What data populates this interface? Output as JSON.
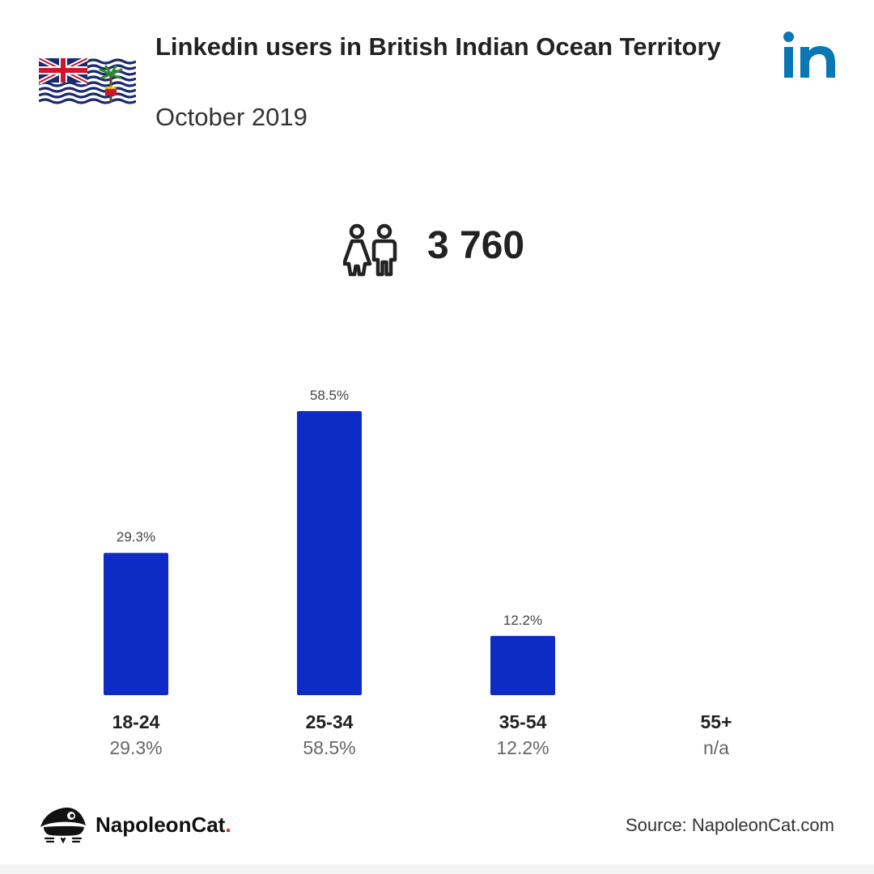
{
  "header": {
    "title": "Linkedin users in British Indian Ocean Territory",
    "subtitle": "October 2019"
  },
  "summary": {
    "total_users": "3 760",
    "icon": "users-icon"
  },
  "icons": {
    "flag": "british-indian-ocean-territory-flag-icon",
    "platform": "linkedin-icon",
    "brand": "napoleoncat-logo-icon"
  },
  "colors": {
    "bar": "#0f2bc6",
    "linkedin": "#0a77b5",
    "brand_dot": "#e0242d"
  },
  "chart_data": {
    "type": "bar",
    "categories": [
      "18-24",
      "25-34",
      "35-54",
      "55+"
    ],
    "values": [
      29.3,
      58.5,
      12.2,
      null
    ],
    "value_labels": [
      "29.3%",
      "58.5%",
      "12.2%",
      ""
    ],
    "category_sublabels": [
      "29.3%",
      "58.5%",
      "12.2%",
      "n/a"
    ],
    "unit": "%",
    "title": "",
    "xlabel": "",
    "ylabel": "",
    "ylim": [
      0,
      58.5
    ],
    "grid": false
  },
  "footer": {
    "brand_name": "NapoleonCat",
    "brand_dot": ".",
    "source": "Source: NapoleonCat.com"
  }
}
